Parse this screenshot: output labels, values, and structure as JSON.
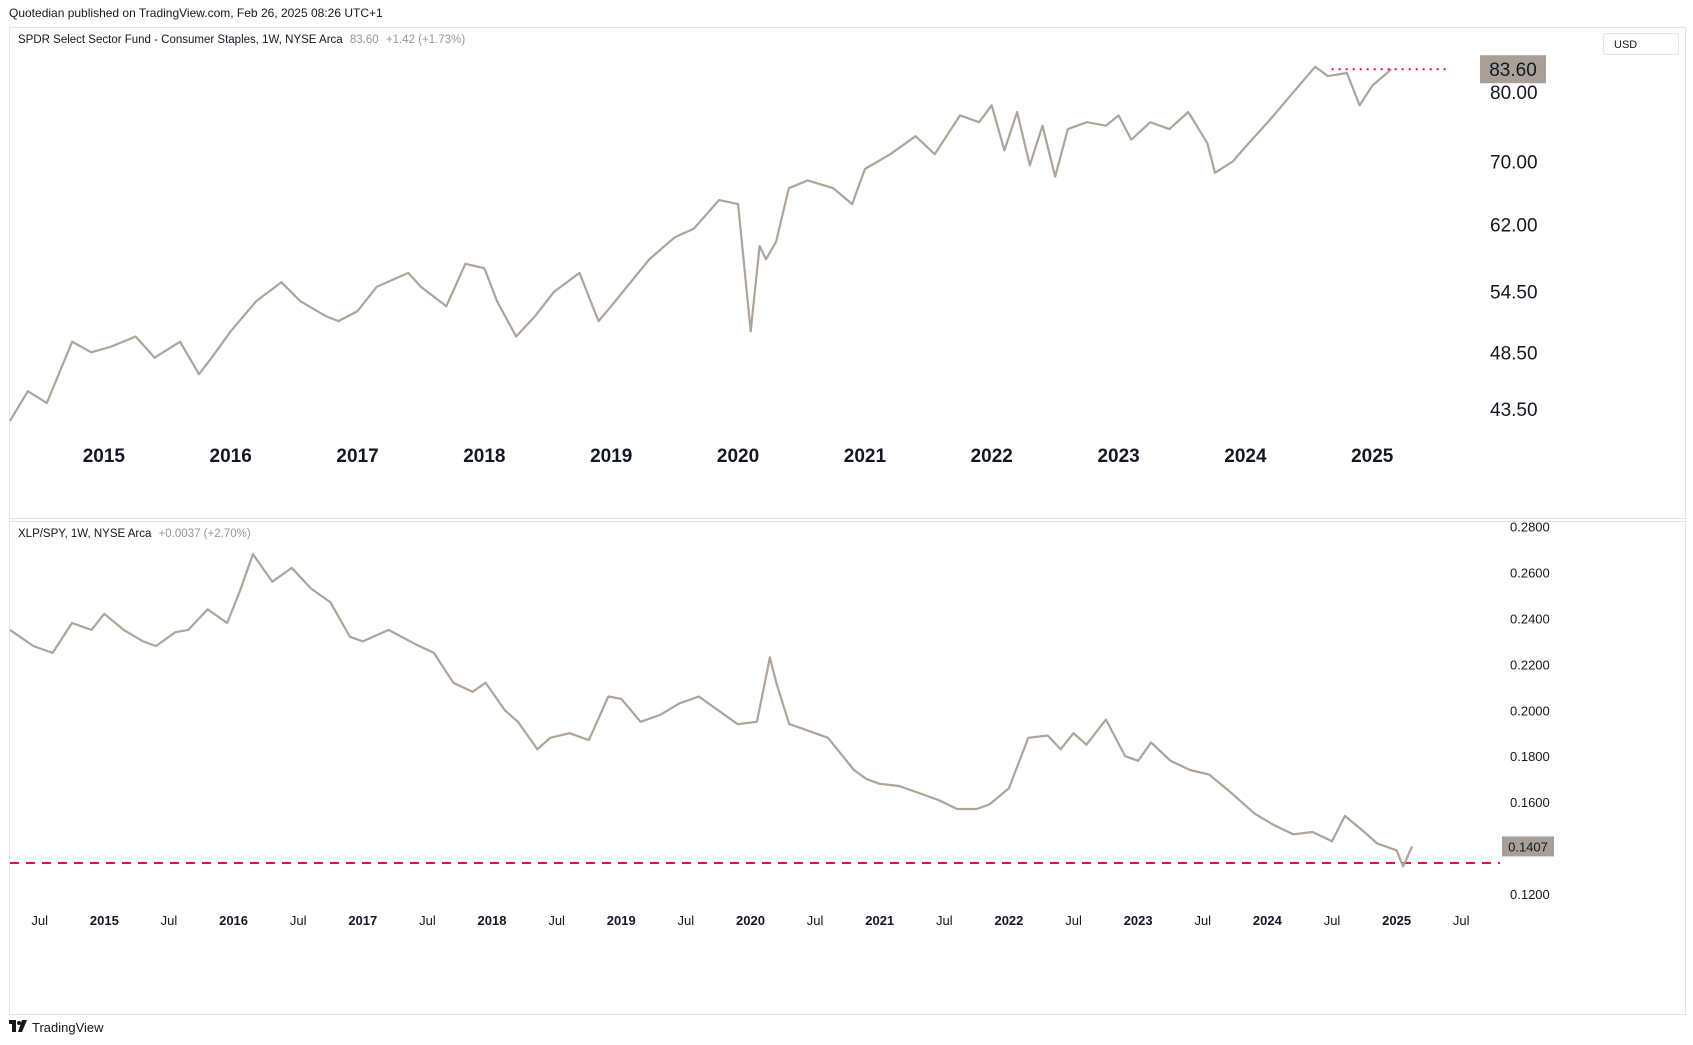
{
  "header": {
    "published": "Quotedian published on TradingView.com, Feb 26, 2025 08:26 UTC+1"
  },
  "footer": {
    "brand": "TradingView",
    "logo_icon": "tradingview-logo-icon"
  },
  "colors": {
    "line": "#ada49a",
    "marker": "#e0143c",
    "badge_bg": "#a8a096"
  },
  "top_pane": {
    "symbol": "SPDR Select Sector Fund - Consumer Staples, 1W, NYSE Arca",
    "last": "83.60",
    "change": "+1.42 (+1.73%)",
    "currency": "USD",
    "price_badge": "83.60"
  },
  "bottom_pane": {
    "symbol": "XLP/SPY, 1W, NYSE Arca",
    "change": "+0.0037 (+2.70%)",
    "price_badge": "0.1407"
  },
  "chart_data": [
    {
      "type": "line",
      "title": "SPDR Select Sector Fund - Consumer Staples, 1W, NYSE Arca",
      "scale": "log",
      "ylim": [
        40.5,
        90.5
      ],
      "ytick_labels": [
        "43.50",
        "48.50",
        "54.50",
        "62.00",
        "70.00",
        "80.00"
      ],
      "yticks": [
        43.5,
        48.5,
        54.5,
        62.0,
        70.0,
        80.0
      ],
      "xtick_labels": [
        "2015",
        "2016",
        "2017",
        "2018",
        "2019",
        "2020",
        "2021",
        "2022",
        "2023",
        "2024",
        "2025"
      ],
      "xticks": [
        2015.0,
        2016.0,
        2017.0,
        2018.0,
        2019.0,
        2020.0,
        2021.0,
        2022.0,
        2023.0,
        2024.0,
        2025.0
      ],
      "xlim": [
        2014.26,
        2025.81
      ],
      "reference_line": {
        "value": 83.6,
        "style": "dotted",
        "from": 2024.68
      },
      "series": [
        {
          "x": [
            2014.26,
            2014.4,
            2014.55,
            2014.75,
            2014.9,
            2015.05,
            2015.25,
            2015.4,
            2015.6,
            2015.75,
            2015.85,
            2016.0,
            2016.2,
            2016.4,
            2016.55,
            2016.75,
            2016.85,
            2017.0,
            2017.15,
            2017.4,
            2017.5,
            2017.7,
            2017.85,
            2018.0,
            2018.1,
            2018.25,
            2018.4,
            2018.55,
            2018.75,
            2018.9,
            2019.0,
            2019.3,
            2019.5,
            2019.65,
            2019.85,
            2020.0,
            2020.1,
            2020.17,
            2020.22,
            2020.3,
            2020.4,
            2020.55,
            2020.75,
            2020.9,
            2021.0,
            2021.2,
            2021.4,
            2021.55,
            2021.75,
            2021.9,
            2022.0,
            2022.1,
            2022.2,
            2022.3,
            2022.4,
            2022.5,
            2022.6,
            2022.75,
            2022.9,
            2023.0,
            2023.1,
            2023.25,
            2023.4,
            2023.55,
            2023.7,
            2023.76,
            2023.9,
            2024.0,
            2024.2,
            2024.4,
            2024.55,
            2024.65,
            2024.8,
            2024.9,
            2025.0,
            2025.15
          ],
          "y": [
            42.5,
            45.0,
            44.0,
            49.5,
            48.5,
            49.0,
            50.0,
            48.0,
            49.5,
            46.5,
            48.0,
            50.5,
            53.5,
            55.5,
            53.5,
            52.0,
            51.5,
            52.5,
            55.0,
            56.5,
            55.0,
            53.0,
            57.5,
            57.0,
            53.5,
            50.0,
            52.0,
            54.5,
            56.5,
            51.5,
            53.0,
            58.0,
            60.5,
            61.5,
            65.0,
            64.5,
            50.5,
            59.5,
            58.0,
            60.0,
            66.5,
            67.5,
            66.5,
            64.5,
            69.0,
            71.0,
            73.5,
            71.0,
            76.5,
            75.5,
            78.0,
            71.5,
            77.0,
            69.5,
            75.0,
            68.0,
            74.5,
            75.5,
            75.0,
            76.5,
            73.0,
            75.5,
            74.5,
            77.0,
            72.5,
            68.5,
            70.0,
            72.0,
            76.0,
            80.5,
            84.0,
            82.5,
            83.0,
            78.0,
            81.0,
            83.6
          ]
        }
      ]
    },
    {
      "type": "line",
      "title": "XLP/SPY, 1W, NYSE Arca",
      "ylim": [
        0.1165,
        0.282
      ],
      "ytick_labels": [
        "0.1200",
        "0.1400",
        "0.1600",
        "0.1800",
        "0.2000",
        "0.2200",
        "0.2400",
        "0.2600",
        "0.2800"
      ],
      "yticks": [
        0.12,
        0.14,
        0.16,
        0.18,
        0.2,
        0.22,
        0.24,
        0.26,
        0.28
      ],
      "xtick_labels": [
        "Jul",
        "2015",
        "Jul",
        "2016",
        "Jul",
        "2017",
        "Jul",
        "2018",
        "Jul",
        "2019",
        "Jul",
        "2020",
        "Jul",
        "2021",
        "Jul",
        "2022",
        "Jul",
        "2023",
        "Jul",
        "2024",
        "Jul",
        "2025",
        "Jul"
      ],
      "xticks": [
        2014.5,
        2015.0,
        2015.5,
        2016.0,
        2016.5,
        2017.0,
        2017.5,
        2018.0,
        2018.5,
        2019.0,
        2019.5,
        2020.0,
        2020.5,
        2021.0,
        2021.5,
        2022.0,
        2022.5,
        2023.0,
        2023.5,
        2024.0,
        2024.5,
        2025.0,
        2025.5
      ],
      "xlim": [
        2014.27,
        2025.8
      ],
      "reference_line": {
        "value": 0.1335,
        "style": "dashed"
      },
      "series": [
        {
          "x": [
            2014.27,
            2014.45,
            2014.6,
            2014.75,
            2014.9,
            2015.0,
            2015.15,
            2015.3,
            2015.4,
            2015.55,
            2015.65,
            2015.8,
            2015.95,
            2016.05,
            2016.15,
            2016.3,
            2016.45,
            2016.6,
            2016.75,
            2016.9,
            2017.0,
            2017.2,
            2017.4,
            2017.55,
            2017.7,
            2017.85,
            2017.95,
            2018.1,
            2018.2,
            2018.35,
            2018.45,
            2018.6,
            2018.75,
            2018.9,
            2019.0,
            2019.15,
            2019.3,
            2019.45,
            2019.6,
            2019.75,
            2019.9,
            2020.05,
            2020.15,
            2020.2,
            2020.3,
            2020.4,
            2020.6,
            2020.8,
            2020.9,
            2021.0,
            2021.15,
            2021.3,
            2021.45,
            2021.6,
            2021.75,
            2021.85,
            2022.0,
            2022.15,
            2022.3,
            2022.4,
            2022.5,
            2022.6,
            2022.75,
            2022.9,
            2023.0,
            2023.1,
            2023.25,
            2023.4,
            2023.55,
            2023.7,
            2023.9,
            2024.05,
            2024.2,
            2024.35,
            2024.5,
            2024.6,
            2024.75,
            2024.85,
            2025.0,
            2025.05,
            2025.12
          ],
          "y": [
            0.235,
            0.228,
            0.225,
            0.238,
            0.235,
            0.242,
            0.235,
            0.23,
            0.228,
            0.234,
            0.235,
            0.244,
            0.238,
            0.252,
            0.268,
            0.256,
            0.262,
            0.253,
            0.247,
            0.232,
            0.23,
            0.235,
            0.229,
            0.225,
            0.212,
            0.208,
            0.212,
            0.2,
            0.195,
            0.183,
            0.188,
            0.19,
            0.187,
            0.206,
            0.205,
            0.195,
            0.198,
            0.203,
            0.206,
            0.2,
            0.194,
            0.195,
            0.223,
            0.212,
            0.194,
            0.192,
            0.188,
            0.174,
            0.17,
            0.168,
            0.167,
            0.164,
            0.161,
            0.157,
            0.157,
            0.159,
            0.166,
            0.188,
            0.189,
            0.183,
            0.19,
            0.185,
            0.196,
            0.18,
            0.178,
            0.186,
            0.178,
            0.174,
            0.172,
            0.165,
            0.155,
            0.15,
            0.146,
            0.147,
            0.143,
            0.154,
            0.147,
            0.142,
            0.139,
            0.132,
            0.1407
          ]
        }
      ]
    }
  ]
}
